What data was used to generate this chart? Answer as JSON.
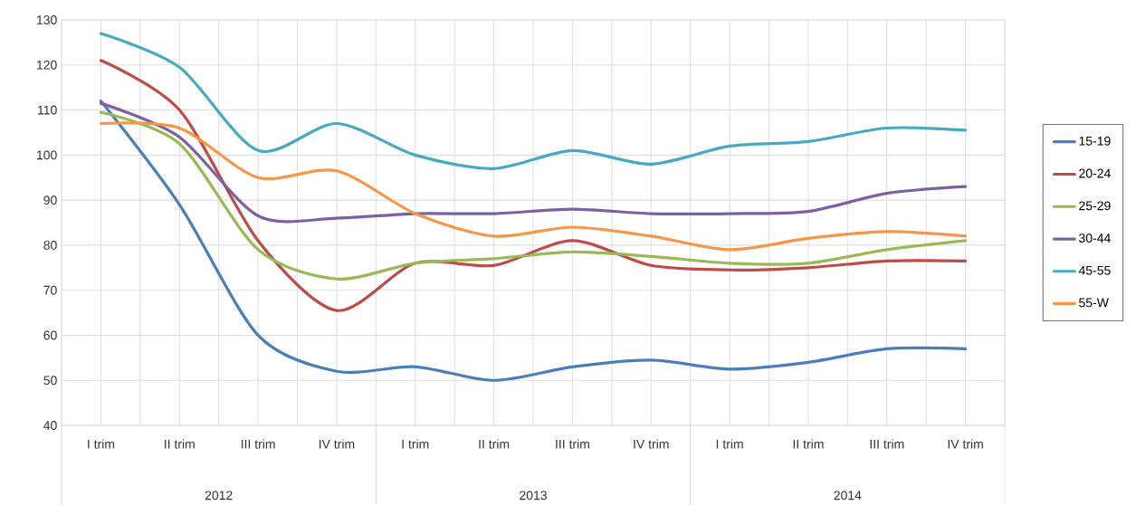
{
  "chart_data": {
    "type": "line",
    "categories": [
      "I trim",
      "II trim",
      "III trim",
      "IV trim",
      "I trim",
      "II trim",
      "III trim",
      "IV trim",
      "I trim",
      "II trim",
      "III trim",
      "IV trim"
    ],
    "annotations": [
      "2012",
      "2013",
      "2014"
    ],
    "ylim": [
      40,
      130
    ],
    "yticks": [
      40,
      50,
      60,
      70,
      80,
      90,
      100,
      110,
      120,
      130
    ],
    "grid": true,
    "legend": "right",
    "series": [
      {
        "name": "15-19",
        "color": "#4a7ebb",
        "values": [
          112,
          89,
          60,
          52,
          53,
          50,
          53,
          54.5,
          52.5,
          54,
          57,
          57
        ]
      },
      {
        "name": "20-24",
        "color": "#be4b48",
        "values": [
          121,
          110,
          81,
          65.5,
          76,
          75.5,
          81,
          75.5,
          74.5,
          75,
          76.5,
          76.5
        ]
      },
      {
        "name": "25-29",
        "color": "#98b954",
        "values": [
          109.5,
          102.5,
          79,
          72.5,
          76,
          77,
          78.5,
          77.5,
          76,
          76,
          79,
          81
        ]
      },
      {
        "name": "30-44",
        "color": "#7d60a0",
        "values": [
          111.5,
          104,
          86.5,
          86,
          87,
          87,
          88,
          87,
          87,
          87.5,
          91.5,
          93
        ]
      },
      {
        "name": "45-55",
        "color": "#46aac5",
        "values": [
          127,
          119.5,
          101,
          107,
          100,
          97,
          101,
          98,
          102,
          103,
          106,
          105.5
        ]
      },
      {
        "name": "55-W",
        "color": "#f79646",
        "values": [
          107,
          106,
          95,
          96.5,
          87,
          82,
          84,
          82,
          79,
          81.5,
          83,
          82
        ]
      }
    ]
  }
}
